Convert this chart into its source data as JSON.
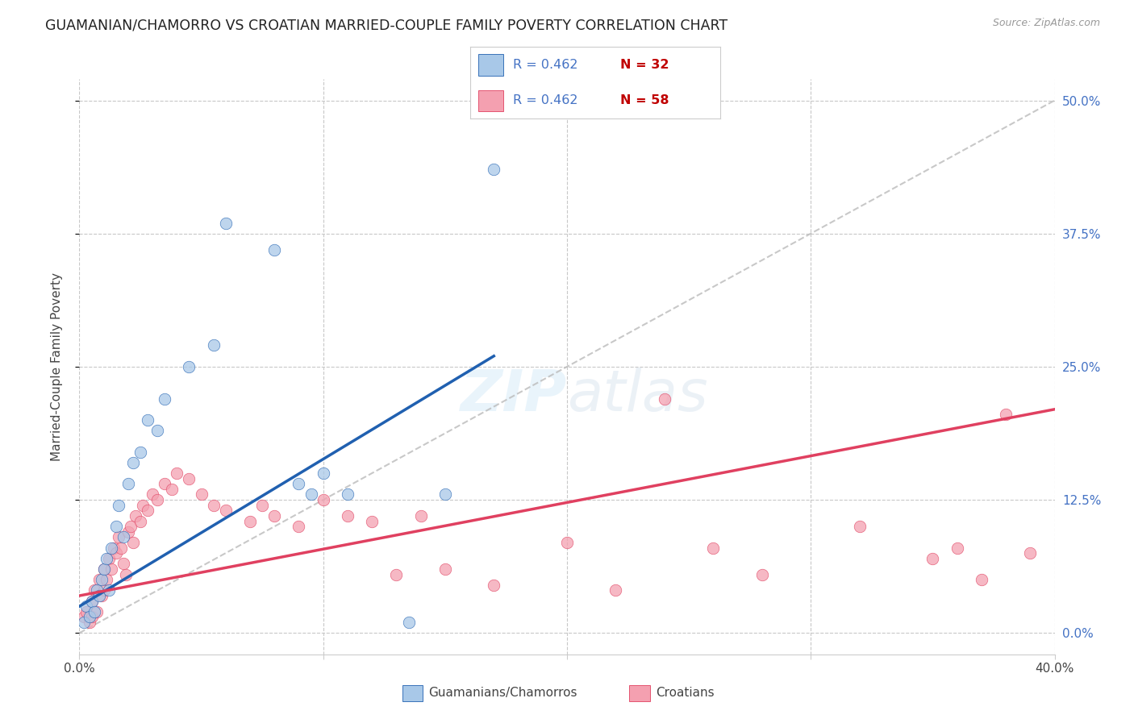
{
  "title": "GUAMANIAN/CHAMORRO VS CROATIAN MARRIED-COUPLE FAMILY POVERTY CORRELATION CHART",
  "source": "Source: ZipAtlas.com",
  "ylabel": "Married-Couple Family Poverty",
  "y_tick_labels": [
    "0.0%",
    "12.5%",
    "25.0%",
    "37.5%",
    "50.0%"
  ],
  "y_tick_values": [
    0,
    12.5,
    25.0,
    37.5,
    50.0
  ],
  "x_tick_labels": [
    "0.0%",
    "",
    "",
    "",
    "40.0%"
  ],
  "x_tick_values": [
    0,
    10,
    20,
    30,
    40
  ],
  "xlim": [
    0,
    40
  ],
  "ylim": [
    -2,
    52
  ],
  "legend_label1": "Guamanians/Chamorros",
  "legend_label2": "Croatians",
  "legend_R1": "0.462",
  "legend_N1": "32",
  "legend_R2": "0.462",
  "legend_N2": "58",
  "color_blue": "#A8C8E8",
  "color_pink": "#F4A0B0",
  "color_blue_line": "#2060B0",
  "color_pink_line": "#E04060",
  "color_text_blue": "#4472C4",
  "color_text_darkblue": "#1F4E79",
  "background_color": "#FFFFFF",
  "guam_x": [
    0.2,
    0.3,
    0.4,
    0.5,
    0.6,
    0.7,
    0.8,
    0.9,
    1.0,
    1.1,
    1.2,
    1.3,
    1.5,
    1.6,
    1.8,
    2.0,
    2.2,
    2.5,
    2.8,
    3.2,
    3.5,
    4.5,
    5.5,
    6.0,
    8.0,
    9.0,
    9.5,
    10.0,
    11.0,
    13.5,
    15.0,
    17.0
  ],
  "guam_y": [
    1.0,
    2.5,
    1.5,
    3.0,
    2.0,
    4.0,
    3.5,
    5.0,
    6.0,
    7.0,
    4.0,
    8.0,
    10.0,
    12.0,
    9.0,
    14.0,
    16.0,
    17.0,
    20.0,
    19.0,
    22.0,
    25.0,
    27.0,
    38.5,
    36.0,
    14.0,
    13.0,
    15.0,
    13.0,
    1.0,
    13.0,
    43.5
  ],
  "croatian_x": [
    0.2,
    0.3,
    0.4,
    0.5,
    0.5,
    0.6,
    0.7,
    0.8,
    0.9,
    1.0,
    1.0,
    1.1,
    1.2,
    1.3,
    1.4,
    1.5,
    1.6,
    1.7,
    1.8,
    1.9,
    2.0,
    2.1,
    2.2,
    2.3,
    2.5,
    2.6,
    2.8,
    3.0,
    3.2,
    3.5,
    3.8,
    4.0,
    4.5,
    5.0,
    5.5,
    6.0,
    7.0,
    7.5,
    8.0,
    9.0,
    10.0,
    11.0,
    12.0,
    13.0,
    14.0,
    15.0,
    17.0,
    20.0,
    22.0,
    24.0,
    26.0,
    28.0,
    32.0,
    35.0,
    36.0,
    37.0,
    38.0,
    39.0
  ],
  "croatian_y": [
    1.5,
    2.0,
    1.0,
    3.0,
    1.5,
    4.0,
    2.0,
    5.0,
    3.5,
    4.0,
    6.0,
    5.0,
    7.0,
    6.0,
    8.0,
    7.5,
    9.0,
    8.0,
    6.5,
    5.5,
    9.5,
    10.0,
    8.5,
    11.0,
    10.5,
    12.0,
    11.5,
    13.0,
    12.5,
    14.0,
    13.5,
    15.0,
    14.5,
    13.0,
    12.0,
    11.5,
    10.5,
    12.0,
    11.0,
    10.0,
    12.5,
    11.0,
    10.5,
    5.5,
    11.0,
    6.0,
    4.5,
    8.5,
    4.0,
    22.0,
    8.0,
    5.5,
    10.0,
    7.0,
    8.0,
    5.0,
    20.5,
    7.5
  ],
  "guam_line_x": [
    0,
    17
  ],
  "guam_line_y": [
    2.5,
    26.0
  ],
  "croatian_line_x": [
    0,
    40
  ],
  "croatian_line_y": [
    3.5,
    21.0
  ],
  "ref_line_x": [
    0,
    40
  ],
  "ref_line_y": [
    0,
    50
  ]
}
